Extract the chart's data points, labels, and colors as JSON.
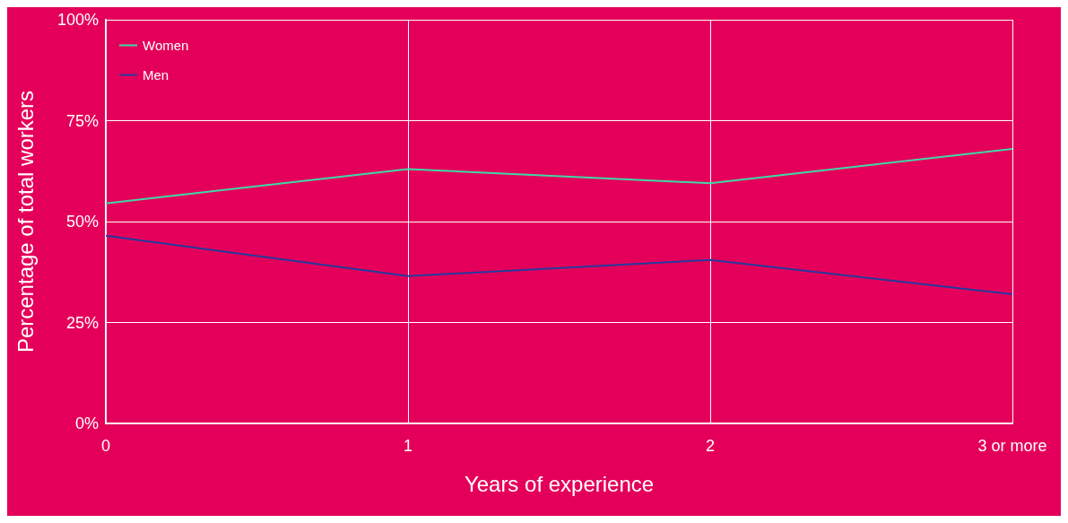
{
  "chart_data": {
    "type": "line",
    "xlabel": "Years of experience",
    "ylabel": "Percentage of total workers",
    "categories": [
      "0",
      "1",
      "2",
      "3 or more"
    ],
    "series": [
      {
        "name": "Women",
        "color": "#3fd9a6",
        "values": [
          54.5,
          63,
          59.5,
          68
        ]
      },
      {
        "name": "Men",
        "color": "#263a9e",
        "values": [
          46.5,
          36.5,
          40.5,
          32
        ]
      }
    ],
    "ylim": [
      0,
      100
    ],
    "yticks": [
      {
        "value": 0,
        "label": "0%"
      },
      {
        "value": 25,
        "label": "25%"
      },
      {
        "value": 50,
        "label": "50%"
      },
      {
        "value": 75,
        "label": "75%"
      },
      {
        "value": 100,
        "label": "100%"
      }
    ],
    "grid": true,
    "legend": "top left",
    "marker": "none",
    "line_style": "solid"
  }
}
